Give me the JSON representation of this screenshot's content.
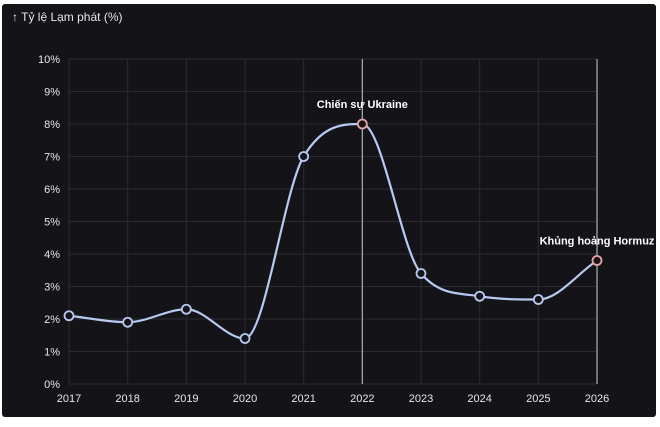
{
  "chart_data": {
    "type": "line",
    "ylabel": "↑ Tỷ lệ Lạm phát (%)",
    "x": [
      "2017",
      "2018",
      "2019",
      "2020",
      "2021",
      "2022",
      "2023",
      "2024",
      "2025",
      "2026"
    ],
    "series": [
      {
        "values": [
          2.1,
          1.9,
          2.3,
          1.4,
          7.0,
          8.0,
          3.4,
          2.7,
          2.6,
          3.8
        ]
      }
    ],
    "ylim": [
      0,
      10
    ],
    "yticks": [
      "0%",
      "1%",
      "2%",
      "3%",
      "4%",
      "5%",
      "6%",
      "7%",
      "8%",
      "9%",
      "10%"
    ],
    "grid": true,
    "annotations": [
      {
        "x": "2022",
        "y": 8.0,
        "text": "Chiến sự Ukraine"
      },
      {
        "x": "2026",
        "y": 3.8,
        "text": "Khủng hoảng Hormuz"
      }
    ],
    "colors": {
      "background": "#141418",
      "line": "#b7c9f0",
      "grid": "#2b2b30",
      "highlight_marker": "#e8a5a5",
      "vline": "#b0b0b0"
    }
  }
}
